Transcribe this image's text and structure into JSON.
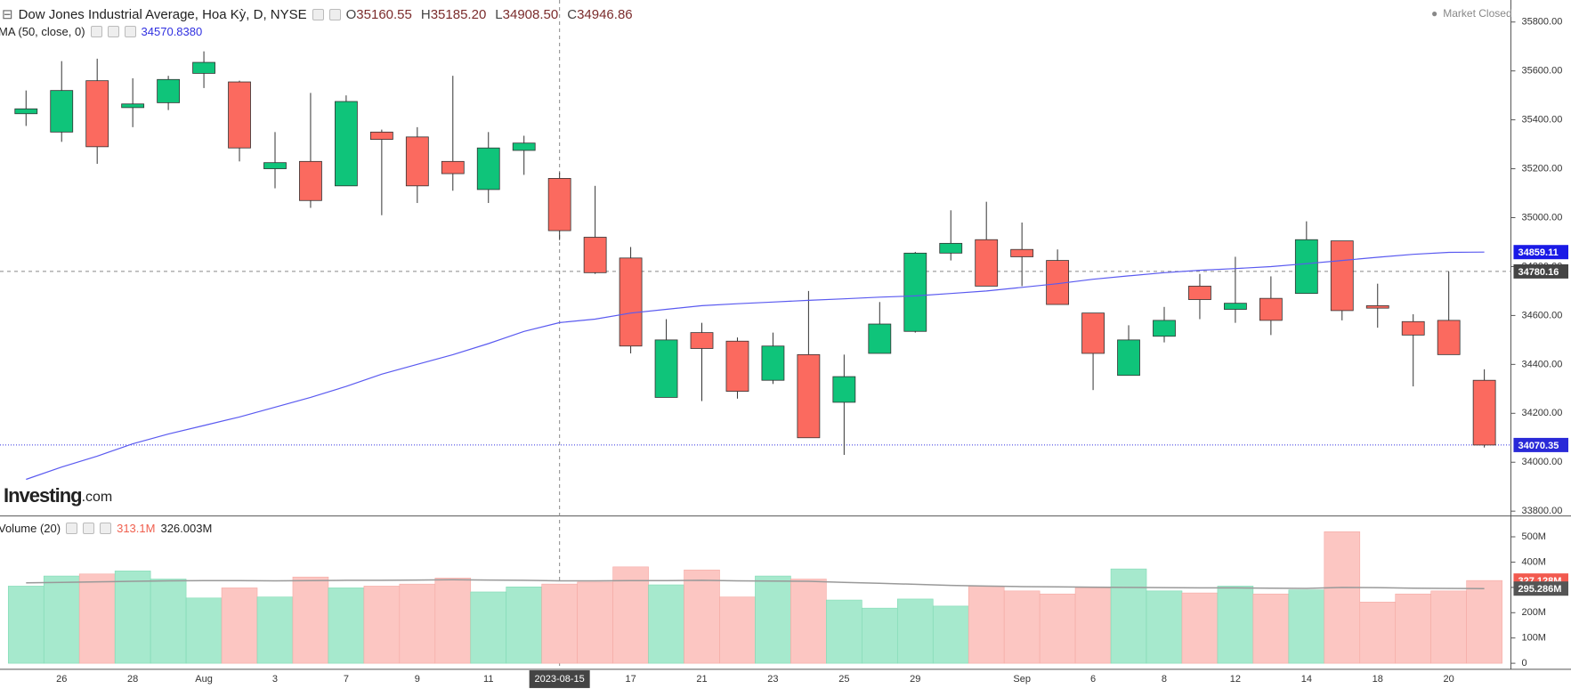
{
  "chart_data": [
    {
      "type": "candlestick",
      "title": "Dow Jones Industrial Average, Hoa Kỳ, D, NYSE",
      "legend_values": [
        {
          "key": "O",
          "text": "35160.55"
        },
        {
          "key": "H",
          "text": "35185.20"
        },
        {
          "key": "L",
          "text": "34908.50"
        },
        {
          "key": "C",
          "text": "34946.86"
        }
      ],
      "status": "Market Closed",
      "logo": "Investing",
      "logo_suffix": ".com",
      "categories": [
        null,
        "26",
        null,
        "28",
        null,
        "Aug",
        null,
        "3",
        null,
        "7",
        null,
        "9",
        null,
        "11",
        null,
        "2023-08-15",
        null,
        "17",
        null,
        "21",
        null,
        "23",
        null,
        "25",
        null,
        "29",
        null,
        null,
        "Sep",
        null,
        "6",
        null,
        "8",
        null,
        "12",
        null,
        "14",
        null,
        "18",
        null,
        "20",
        null
      ],
      "open": [
        35425,
        35350,
        35560,
        35450,
        35470,
        35590,
        35555,
        35200,
        35230,
        35130,
        35350,
        35330,
        35230,
        35115,
        35275,
        35160.55,
        34920,
        34835,
        34265,
        34530,
        34495,
        34335,
        34440,
        34245,
        34445,
        34535,
        34855,
        34910,
        34870,
        34825,
        34610,
        34355,
        34515,
        34720,
        34625,
        34670,
        34690,
        34905,
        34640,
        34575,
        34580,
        34335
      ],
      "high": [
        35520,
        35640,
        35650,
        35570,
        35580,
        35680,
        35560,
        35350,
        35510,
        35500,
        35360,
        35370,
        35580,
        35350,
        35335,
        35185.2,
        35130,
        34880,
        34585,
        34570,
        34510,
        34530,
        34700,
        34440,
        34655,
        34860,
        35030,
        35065,
        34980,
        34870,
        34610,
        34560,
        34635,
        34770,
        34840,
        34760,
        34985,
        34905,
        34730,
        34605,
        34780,
        34380
      ],
      "low": [
        35375,
        35310,
        35220,
        35370,
        35440,
        35530,
        35230,
        35120,
        35040,
        35130,
        35010,
        35060,
        35110,
        35060,
        35175,
        34908.5,
        34770,
        34445,
        34265,
        34250,
        34260,
        34320,
        34100,
        34030,
        34445,
        34530,
        34825,
        34720,
        34720,
        34645,
        34295,
        34355,
        34490,
        34585,
        34570,
        34520,
        34690,
        34580,
        34550,
        34310,
        34440,
        34060
      ],
      "close": [
        35445,
        35520,
        35290,
        35465,
        35565,
        35635,
        35285,
        35225,
        35070,
        35475,
        35320,
        35130,
        35180,
        35285,
        35305,
        34946.86,
        34775,
        34475,
        34500,
        34465,
        34290,
        34475,
        34100,
        34350,
        34565,
        34855,
        34895,
        34720,
        34840,
        34645,
        34445,
        34500,
        34580,
        34665,
        34650,
        34580,
        34910,
        34620,
        34630,
        34520,
        34440,
        34070.35
      ],
      "up_color": "#0fc47a",
      "down_color": "#fb6a5f",
      "series": [
        {
          "name": "MA (50, close, 0)",
          "legend_text": "34570.8380",
          "color": "#5a5af0",
          "values": [
            33930,
            33980,
            34025,
            34075,
            34115,
            34150,
            34185,
            34225,
            34265,
            34310,
            34360,
            34400,
            34440,
            34485,
            34535,
            34570.84,
            34585,
            34610,
            34625,
            34640,
            34648,
            34655,
            34662,
            34668,
            34675,
            34680,
            34690,
            34700,
            34715,
            34730,
            34748,
            34762,
            34775,
            34785,
            34792,
            34800,
            34812,
            34825,
            34838,
            34850,
            34858,
            34859.11
          ]
        }
      ],
      "crosshair": {
        "x": "2023-08-15",
        "y": 34780.16
      },
      "ylim": [
        33784,
        35890
      ],
      "yticks": [
        {
          "value": 33800,
          "label": "33800.00"
        },
        {
          "value": 34000,
          "label": "34000.00"
        },
        {
          "value": 34200,
          "label": "34200.00"
        },
        {
          "value": 34400,
          "label": "34400.00"
        },
        {
          "value": 34600,
          "label": "34600.00"
        },
        {
          "value": 34800,
          "label": "34800.00"
        },
        {
          "value": 35000,
          "label": "35000.00"
        },
        {
          "value": 35200,
          "label": "35200.00"
        },
        {
          "value": 35400,
          "label": "35400.00"
        },
        {
          "value": 35600,
          "label": "35600.00"
        },
        {
          "value": 35800,
          "label": "35800.00"
        }
      ]
    },
    {
      "type": "bar",
      "title": "Volume (20)",
      "legend_values": [
        "313.1M",
        "326.003M"
      ],
      "up_color": "#a6e9cd",
      "down_color": "#fcc6c2",
      "values": [
        305,
        345,
        353,
        365,
        333,
        258,
        298,
        262,
        341,
        298,
        305,
        313,
        337,
        282,
        302,
        313.1,
        321,
        381,
        310,
        369,
        262,
        345,
        333,
        250,
        218,
        254,
        226,
        305,
        286,
        274,
        298,
        373,
        286,
        278,
        305,
        274,
        290,
        520,
        242,
        274,
        286,
        327.128
      ],
      "value_labels": [
        null,
        null,
        null,
        null,
        null,
        null,
        null,
        null,
        null,
        null,
        null,
        null,
        null,
        null,
        null,
        null,
        null,
        null,
        null,
        null,
        null,
        null,
        null,
        null,
        null,
        null,
        null,
        null,
        null,
        null,
        null,
        null,
        null,
        null,
        null,
        null,
        null,
        null,
        null,
        null,
        null,
        "327.128M"
      ],
      "series": [
        {
          "color": "#999999",
          "values": [
            318,
            320,
            322,
            324,
            326,
            327,
            327,
            326,
            327,
            328,
            328,
            329,
            330,
            329,
            328,
            326.003,
            326,
            327,
            327,
            328,
            326,
            325,
            324,
            320,
            316,
            312,
            308,
            305,
            303,
            302,
            301,
            300,
            299,
            298,
            298,
            297,
            296,
            300,
            299,
            297,
            296,
            295.286
          ],
          "value_labels": [
            null,
            null,
            null,
            null,
            null,
            null,
            null,
            null,
            null,
            null,
            null,
            null,
            null,
            null,
            null,
            null,
            null,
            null,
            null,
            null,
            null,
            null,
            null,
            null,
            null,
            null,
            null,
            null,
            null,
            null,
            null,
            null,
            null,
            null,
            null,
            null,
            null,
            null,
            null,
            null,
            null,
            "295.286M"
          ]
        }
      ],
      "ylim": [
        -24,
        579
      ],
      "yticks": [
        0,
        {
          "value": 100,
          "label": "100M"
        },
        {
          "value": 200,
          "label": "200M"
        },
        {
          "value": 300,
          "label": "300M"
        },
        {
          "value": 400,
          "label": "400M"
        },
        {
          "value": 500,
          "label": "500M"
        }
      ]
    }
  ]
}
